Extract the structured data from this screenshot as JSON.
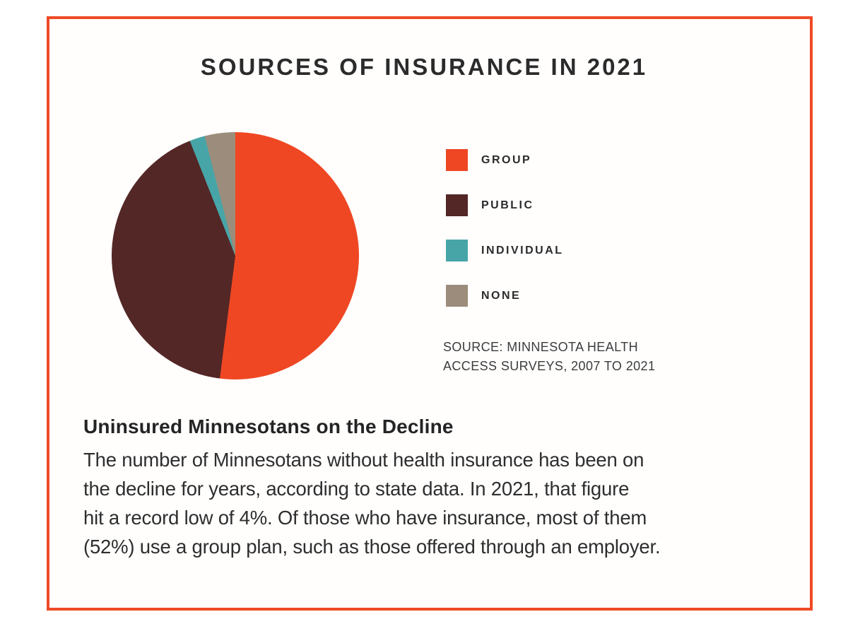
{
  "page": {
    "border_color": "#ef4a26",
    "background_color": "#ffffff"
  },
  "chart_data": {
    "type": "pie",
    "title": "SOURCES OF INSURANCE IN 2021",
    "categories": [
      "GROUP",
      "PUBLIC",
      "INDIVIDUAL",
      "NONE"
    ],
    "values": [
      52,
      42,
      2,
      4
    ],
    "unit": "percent",
    "colors": [
      "#ef4723",
      "#532726",
      "#47a5a8",
      "#9c8c7b"
    ],
    "start_angle_deg": 0,
    "direction": "clockwise",
    "legend_position": "right",
    "source_lines": [
      "SOURCE: MINNESOTA HEALTH",
      "ACCESS SURVEYS, 2007 TO 2021"
    ]
  },
  "legend": {
    "items": [
      {
        "label": "GROUP"
      },
      {
        "label": "PUBLIC"
      },
      {
        "label": "INDIVIDUAL"
      },
      {
        "label": "NONE"
      }
    ]
  },
  "source": {
    "line1": "SOURCE: MINNESOTA HEALTH",
    "line2": "ACCESS SURVEYS, 2007 TO 2021"
  },
  "caption": {
    "heading": "Uninsured Minnesotans on the Decline",
    "lines": [
      "The number of Minnesotans without health insurance has been on",
      "the decline for years, according to state data. In 2021, that figure",
      "hit a record low of 4%. Of those who have insurance, most of them",
      "(52%) use a group plan, such as those offered through an employer."
    ]
  }
}
